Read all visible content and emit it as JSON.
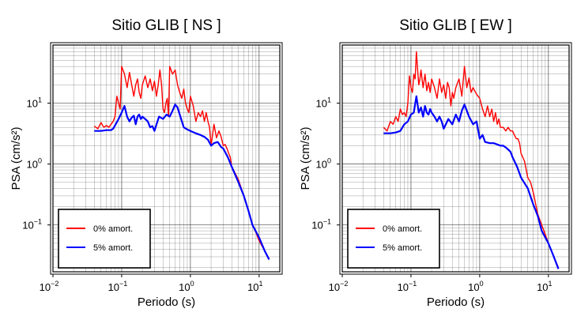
{
  "colors": {
    "undamped": "#ff0000",
    "damped": "#0000ff",
    "grid": "#000000"
  },
  "chart_data": [
    {
      "type": "line",
      "title": "Sitio GLIB [ NS ]",
      "xlabel": "Periodo (s)",
      "ylabel": "PSA (cm/s²)",
      "xscale": "log",
      "yscale": "log",
      "xlim": [
        0.01,
        20
      ],
      "ylim": [
        0.017,
        90
      ],
      "xticks": [
        {
          "base": "10",
          "exp": "−2",
          "value": 0.01
        },
        {
          "base": "10",
          "exp": "−1",
          "value": 0.1
        },
        {
          "base": "10",
          "exp": "0",
          "value": 1
        },
        {
          "base": "10",
          "exp": "1",
          "value": 10
        }
      ],
      "yticks": [
        {
          "base": "10",
          "exp": "−1",
          "value": 0.1
        },
        {
          "base": "10",
          "exp": "0",
          "value": 1
        },
        {
          "base": "10",
          "exp": "1",
          "value": 10
        }
      ],
      "grid": true,
      "legend_position": "bottom-left",
      "series": [
        {
          "name": "0% amort.",
          "x": [
            0.04,
            0.045,
            0.05,
            0.055,
            0.06,
            0.065,
            0.07,
            0.075,
            0.08,
            0.085,
            0.09,
            0.095,
            0.1,
            0.11,
            0.12,
            0.13,
            0.14,
            0.15,
            0.16,
            0.17,
            0.18,
            0.19,
            0.2,
            0.22,
            0.24,
            0.26,
            0.28,
            0.3,
            0.32,
            0.34,
            0.36,
            0.38,
            0.4,
            0.42,
            0.44,
            0.46,
            0.48,
            0.5,
            0.55,
            0.6,
            0.65,
            0.7,
            0.75,
            0.8,
            0.85,
            0.9,
            0.95,
            1.0,
            1.1,
            1.2,
            1.3,
            1.4,
            1.5,
            1.6,
            1.7,
            1.8,
            1.9,
            2.0,
            2.2,
            2.4,
            2.6,
            2.8,
            3.0,
            3.2,
            3.4,
            3.6,
            3.8,
            4.0,
            4.5,
            5.0,
            5.5,
            6.0,
            6.5,
            7.0,
            8.0,
            9.0,
            10.0,
            12.0,
            14.0
          ],
          "y": [
            4.2,
            3.8,
            4.8,
            4.0,
            4.3,
            4.0,
            4.5,
            5.0,
            6.0,
            13,
            10,
            8,
            40,
            30,
            18,
            32,
            20,
            13,
            20,
            25,
            15,
            12,
            20,
            28,
            18,
            25,
            16,
            23,
            13,
            20,
            35,
            20,
            8,
            7,
            10,
            12,
            6,
            40,
            30,
            35,
            20,
            15,
            12,
            17,
            10,
            8,
            7,
            13,
            9,
            5,
            7,
            6,
            7.5,
            5,
            7,
            5,
            4,
            2.0,
            4.5,
            2.7,
            3.5,
            2.8,
            2.0,
            2.1,
            1.8,
            1.5,
            1.3,
            0.9,
            0.7,
            0.55,
            0.4,
            0.3,
            0.22,
            0.17,
            0.1,
            0.075,
            0.055,
            0.038,
            0.028
          ]
        },
        {
          "name": "5% amort.",
          "x": [
            0.04,
            0.05,
            0.06,
            0.07,
            0.075,
            0.08,
            0.09,
            0.1,
            0.11,
            0.12,
            0.13,
            0.14,
            0.15,
            0.16,
            0.17,
            0.18,
            0.19,
            0.2,
            0.22,
            0.24,
            0.26,
            0.28,
            0.3,
            0.35,
            0.4,
            0.45,
            0.5,
            0.55,
            0.6,
            0.65,
            0.7,
            0.8,
            0.9,
            1.0,
            1.2,
            1.4,
            1.6,
            1.8,
            2.0,
            2.2,
            2.5,
            2.8,
            3.0,
            3.5,
            4.0,
            5.0,
            6.0,
            7.0,
            8.0,
            10.0,
            12.0,
            14.0
          ],
          "y": [
            3.5,
            3.5,
            3.6,
            3.6,
            3.8,
            4.3,
            5.5,
            7.0,
            9.0,
            6.0,
            5.0,
            5.8,
            6.2,
            4.5,
            6.0,
            6.5,
            5.5,
            6.0,
            5.5,
            5.0,
            4.0,
            4.2,
            3.5,
            6.0,
            5.5,
            6.5,
            6.0,
            7.5,
            9.5,
            8.5,
            6.5,
            4.0,
            3.7,
            3.5,
            3.2,
            3.0,
            2.8,
            2.5,
            2.0,
            2.2,
            2.3,
            1.9,
            1.8,
            1.3,
            0.9,
            0.5,
            0.3,
            0.17,
            0.1,
            0.062,
            0.038,
            0.027
          ]
        }
      ]
    },
    {
      "type": "line",
      "title": "Sitio GLIB [ EW ]",
      "xlabel": "Periodo (s)",
      "ylabel": "PSA (cm/s²)",
      "xscale": "log",
      "yscale": "log",
      "xlim": [
        0.01,
        20
      ],
      "ylim": [
        0.017,
        90
      ],
      "xticks": [
        {
          "base": "10",
          "exp": "−2",
          "value": 0.01
        },
        {
          "base": "10",
          "exp": "−1",
          "value": 0.1
        },
        {
          "base": "10",
          "exp": "0",
          "value": 1
        },
        {
          "base": "10",
          "exp": "1",
          "value": 10
        }
      ],
      "yticks": [
        {
          "base": "10",
          "exp": "−1",
          "value": 0.1
        },
        {
          "base": "10",
          "exp": "0",
          "value": 1
        },
        {
          "base": "10",
          "exp": "1",
          "value": 10
        }
      ],
      "grid": true,
      "legend_position": "bottom-left",
      "series": [
        {
          "name": "0% amort.",
          "x": [
            0.04,
            0.045,
            0.05,
            0.055,
            0.06,
            0.065,
            0.07,
            0.075,
            0.08,
            0.085,
            0.09,
            0.095,
            0.1,
            0.105,
            0.11,
            0.115,
            0.12,
            0.125,
            0.13,
            0.135,
            0.14,
            0.15,
            0.16,
            0.17,
            0.18,
            0.19,
            0.2,
            0.22,
            0.24,
            0.26,
            0.28,
            0.3,
            0.32,
            0.34,
            0.36,
            0.38,
            0.4,
            0.42,
            0.45,
            0.5,
            0.55,
            0.6,
            0.65,
            0.7,
            0.75,
            0.8,
            0.9,
            1.0,
            1.1,
            1.2,
            1.3,
            1.4,
            1.5,
            1.6,
            1.7,
            1.8,
            1.9,
            2.0,
            2.2,
            2.4,
            2.6,
            2.8,
            3.0,
            3.2,
            3.4,
            3.6,
            3.8,
            4.0,
            4.5,
            5.0,
            5.5,
            6.0,
            7.0,
            8.0,
            9.0,
            10.0,
            12.0,
            14.0
          ],
          "y": [
            4.0,
            3.5,
            5.0,
            4.5,
            6.0,
            5.0,
            8.0,
            6.5,
            7.0,
            6.0,
            10,
            28,
            18,
            15,
            30,
            25,
            70,
            35,
            20,
            25,
            35,
            18,
            30,
            16,
            22,
            15,
            25,
            18,
            12,
            25,
            15,
            20,
            12,
            22,
            18,
            9,
            15,
            12,
            18,
            25,
            13,
            40,
            18,
            26,
            15,
            18,
            14,
            12,
            8,
            6,
            9,
            6,
            8,
            5,
            7,
            4.5,
            5.5,
            4.0,
            4.0,
            3.5,
            4.0,
            3.5,
            3.5,
            3.0,
            2.6,
            2.6,
            2.2,
            1.5,
            1.1,
            0.6,
            0.5,
            0.35,
            0.15,
            0.1,
            0.07,
            0.05,
            0.03,
            0.02
          ]
        },
        {
          "name": "5% amort.",
          "x": [
            0.04,
            0.05,
            0.06,
            0.07,
            0.08,
            0.09,
            0.1,
            0.11,
            0.12,
            0.13,
            0.14,
            0.15,
            0.16,
            0.17,
            0.18,
            0.19,
            0.2,
            0.22,
            0.24,
            0.26,
            0.28,
            0.3,
            0.35,
            0.4,
            0.45,
            0.5,
            0.55,
            0.6,
            0.65,
            0.7,
            0.8,
            0.9,
            1.0,
            1.1,
            1.2,
            1.4,
            1.6,
            1.8,
            2.0,
            2.2,
            2.5,
            2.8,
            3.0,
            3.5,
            4.0,
            5.0,
            6.0,
            7.0,
            8.0,
            10.0,
            12.0,
            14.0
          ],
          "y": [
            3.2,
            3.2,
            3.3,
            3.5,
            4.5,
            5.0,
            6.5,
            7.0,
            13,
            7.0,
            8.5,
            6.0,
            9.0,
            7.0,
            6.5,
            8.0,
            7.0,
            6.0,
            5.0,
            6.0,
            5.0,
            3.8,
            5.5,
            4.5,
            6.5,
            5.0,
            7.5,
            9.5,
            7.5,
            6.0,
            4.5,
            5.0,
            2.6,
            3.0,
            2.3,
            2.2,
            2.2,
            2.1,
            2.0,
            2.0,
            1.8,
            1.6,
            1.3,
            0.9,
            0.6,
            0.4,
            0.22,
            0.14,
            0.08,
            0.05,
            0.03,
            0.019
          ]
        }
      ]
    }
  ]
}
